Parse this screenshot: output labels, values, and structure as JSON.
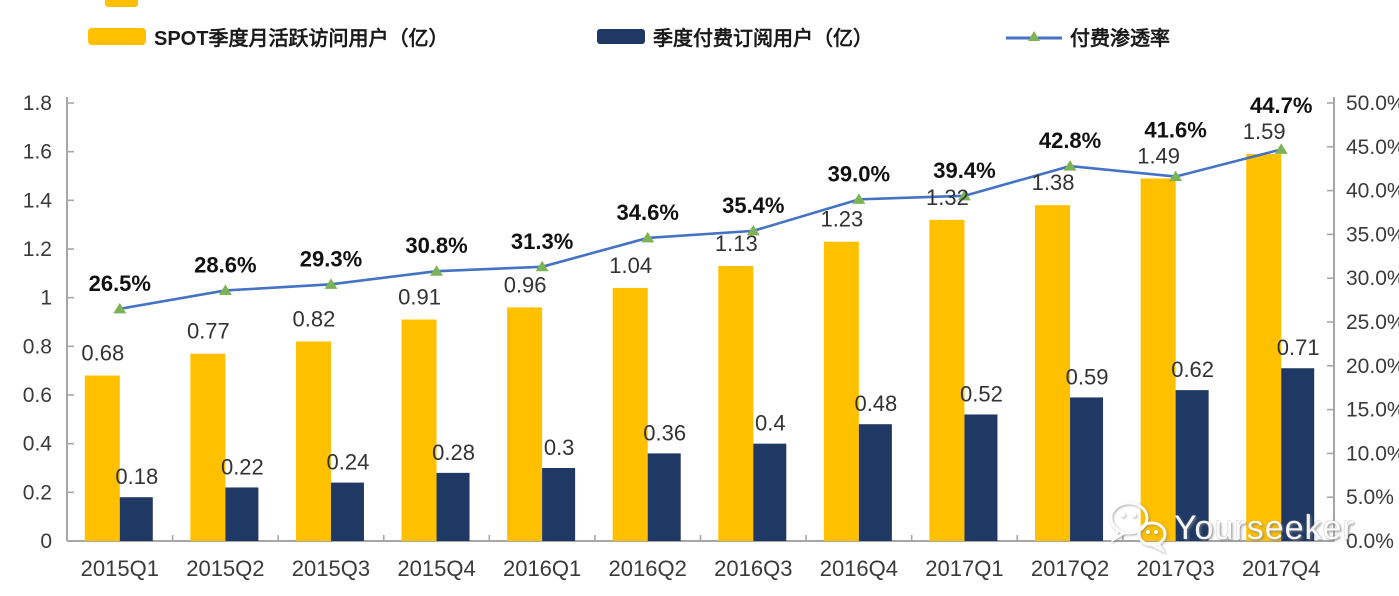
{
  "legend": {
    "items": [
      {
        "label": "SPOT季度月活跃访问用户（亿）",
        "swatch": "bar",
        "color": "#FFC000"
      },
      {
        "label": "季度付费订阅用户（亿）",
        "swatch": "bar",
        "color": "#1F3864"
      },
      {
        "label": "付费渗透率",
        "swatch": "line",
        "line_color": "#4472C4",
        "marker_color": "#7DB356"
      }
    ]
  },
  "watermark": {
    "text": "Yourseeker",
    "icon": "wechat-chat-bubbles-icon"
  },
  "chart_data": {
    "type": "bar",
    "subtype": "grouped-bars-with-line",
    "title": "",
    "categories": [
      "2015Q1",
      "2015Q2",
      "2015Q3",
      "2015Q4",
      "2016Q1",
      "2016Q2",
      "2016Q3",
      "2016Q4",
      "2017Q1",
      "2017Q2",
      "2017Q3",
      "2017Q4"
    ],
    "series": [
      {
        "name": "SPOT季度月活跃访问用户（亿）",
        "type": "bar",
        "axis": "left",
        "color": "#FFC000",
        "values": [
          0.68,
          0.77,
          0.82,
          0.91,
          0.96,
          1.04,
          1.13,
          1.23,
          1.32,
          1.38,
          1.49,
          1.59
        ],
        "labels": [
          "0.68",
          "0.77",
          "0.82",
          "0.91",
          "0.96",
          "1.04",
          "1.13",
          "1.23",
          "1.32",
          "1.38",
          "1.49",
          "1.59"
        ]
      },
      {
        "name": "季度付费订阅用户（亿）",
        "type": "bar",
        "axis": "left",
        "color": "#1F3864",
        "values": [
          0.18,
          0.22,
          0.24,
          0.28,
          0.3,
          0.36,
          0.4,
          0.48,
          0.52,
          0.59,
          0.62,
          0.71
        ],
        "labels": [
          "0.18",
          "0.22",
          "0.24",
          "0.28",
          "0.3",
          "0.36",
          "0.4",
          "0.48",
          "0.52",
          "0.59",
          "0.62",
          "0.71"
        ]
      },
      {
        "name": "付费渗透率",
        "type": "line",
        "axis": "right",
        "color": "#4472C4",
        "marker": "triangle",
        "marker_color": "#7DB356",
        "values": [
          26.5,
          28.6,
          29.3,
          30.8,
          31.3,
          34.6,
          35.4,
          39.0,
          39.4,
          42.8,
          41.6,
          44.7
        ],
        "labels": [
          "26.5%",
          "28.6%",
          "29.3%",
          "30.8%",
          "31.3%",
          "34.6%",
          "35.4%",
          "39.0%",
          "39.4%",
          "42.8%",
          "41.6%",
          "44.7%"
        ]
      }
    ],
    "left_axis": {
      "min": 0,
      "max": 1.8,
      "step": 0.2,
      "tick_labels": [
        "0",
        "0.2",
        "0.4",
        "0.6",
        "0.8",
        "1",
        "1.2",
        "1.4",
        "1.6",
        "1.8"
      ]
    },
    "right_axis": {
      "min": 0,
      "max": 50,
      "step": 5,
      "tick_labels": [
        "0.0%",
        "5.0%",
        "10.0%",
        "15.0%",
        "20.0%",
        "25.0%",
        "30.0%",
        "35.0%",
        "40.0%",
        "45.0%",
        "50.0%"
      ]
    },
    "grid": false,
    "legend_position": "top",
    "colors": {
      "axis": "#A6A6A6",
      "tick_text": "#3a3a3a",
      "value_label_text": "#333333",
      "pct_label_text": "#111111"
    }
  }
}
